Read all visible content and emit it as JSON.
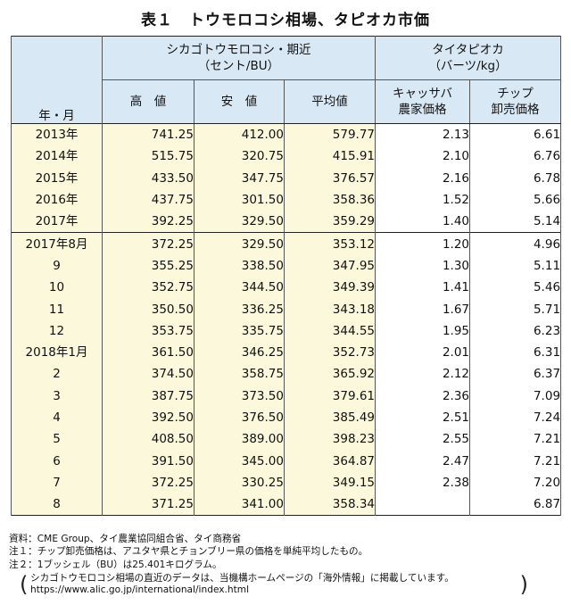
{
  "title": "表１　トウモロコシ相場、タピオカ市価",
  "header": {
    "year_month": "年・月",
    "group1": "シカゴトウモロコシ・期近",
    "group1_unit": "（セント/BU）",
    "group2": "タイタピオカ",
    "group2_unit": "（バーツ/kg）",
    "col_high": "高　値",
    "col_low": "安　値",
    "col_avg": "平均値",
    "col_cassava_1": "キャッサバ",
    "col_cassava_2": "農家価格",
    "col_chip_1": "チップ",
    "col_chip_2": "卸売価格"
  },
  "rows": [
    {
      "label": "2013年",
      "high": "741.25",
      "low": "412.00",
      "avg": "579.77",
      "cassava": "2.13",
      "chip": "6.61"
    },
    {
      "label": "2014年",
      "high": "515.75",
      "low": "320.75",
      "avg": "415.91",
      "cassava": "2.10",
      "chip": "6.76"
    },
    {
      "label": "2015年",
      "high": "433.50",
      "low": "347.75",
      "avg": "376.57",
      "cassava": "2.16",
      "chip": "6.78"
    },
    {
      "label": "2016年",
      "high": "437.75",
      "low": "301.50",
      "avg": "358.36",
      "cassava": "1.52",
      "chip": "5.66"
    },
    {
      "label": "2017年",
      "high": "392.25",
      "low": "329.50",
      "avg": "359.29",
      "cassava": "1.40",
      "chip": "5.14"
    },
    {
      "label": "2017年8月",
      "high": "372.25",
      "low": "329.50",
      "avg": "353.12",
      "cassava": "1.20",
      "chip": "4.96"
    },
    {
      "label": "9",
      "high": "355.25",
      "low": "338.50",
      "avg": "347.95",
      "cassava": "1.30",
      "chip": "5.11"
    },
    {
      "label": "10",
      "high": "352.75",
      "low": "344.50",
      "avg": "349.39",
      "cassava": "1.41",
      "chip": "5.46"
    },
    {
      "label": "11",
      "high": "350.50",
      "low": "336.25",
      "avg": "343.18",
      "cassava": "1.67",
      "chip": "5.71"
    },
    {
      "label": "12",
      "high": "353.75",
      "low": "335.75",
      "avg": "344.55",
      "cassava": "1.95",
      "chip": "6.23"
    },
    {
      "label": "2018年1月",
      "high": "361.50",
      "low": "346.25",
      "avg": "352.73",
      "cassava": "2.01",
      "chip": "6.31"
    },
    {
      "label": "2",
      "high": "374.50",
      "low": "358.75",
      "avg": "365.92",
      "cassava": "2.12",
      "chip": "6.37"
    },
    {
      "label": "3",
      "high": "387.75",
      "low": "373.50",
      "avg": "379.61",
      "cassava": "2.36",
      "chip": "7.09"
    },
    {
      "label": "4",
      "high": "392.50",
      "low": "376.50",
      "avg": "385.49",
      "cassava": "2.51",
      "chip": "7.24"
    },
    {
      "label": "5",
      "high": "408.50",
      "low": "389.00",
      "avg": "398.23",
      "cassava": "2.55",
      "chip": "7.21"
    },
    {
      "label": "6",
      "high": "391.50",
      "low": "345.00",
      "avg": "364.87",
      "cassava": "2.47",
      "chip": "7.21"
    },
    {
      "label": "7",
      "high": "372.25",
      "low": "330.25",
      "avg": "349.15",
      "cassava": "2.38",
      "chip": "7.20"
    },
    {
      "label": "8",
      "high": "371.25",
      "low": "341.00",
      "avg": "358.34",
      "cassava": "",
      "chip": "6.87"
    }
  ],
  "notes": {
    "source": "資料：CME Group、タイ農業協同組合省、タイ商務省",
    "note1": "注１：チップ卸売価格は、アユタヤ県とチョンブリー県の価格を単純平均したもの。",
    "note2": "注２：1ブッシェル（BU）は25.401キログラム。",
    "paren_text": "シカゴトウモロコシ相場の直近のデータは、当機構ホームページの「海外情報」に掲載しています。",
    "url": "https://www.alic.go.jp/international/index.html"
  }
}
